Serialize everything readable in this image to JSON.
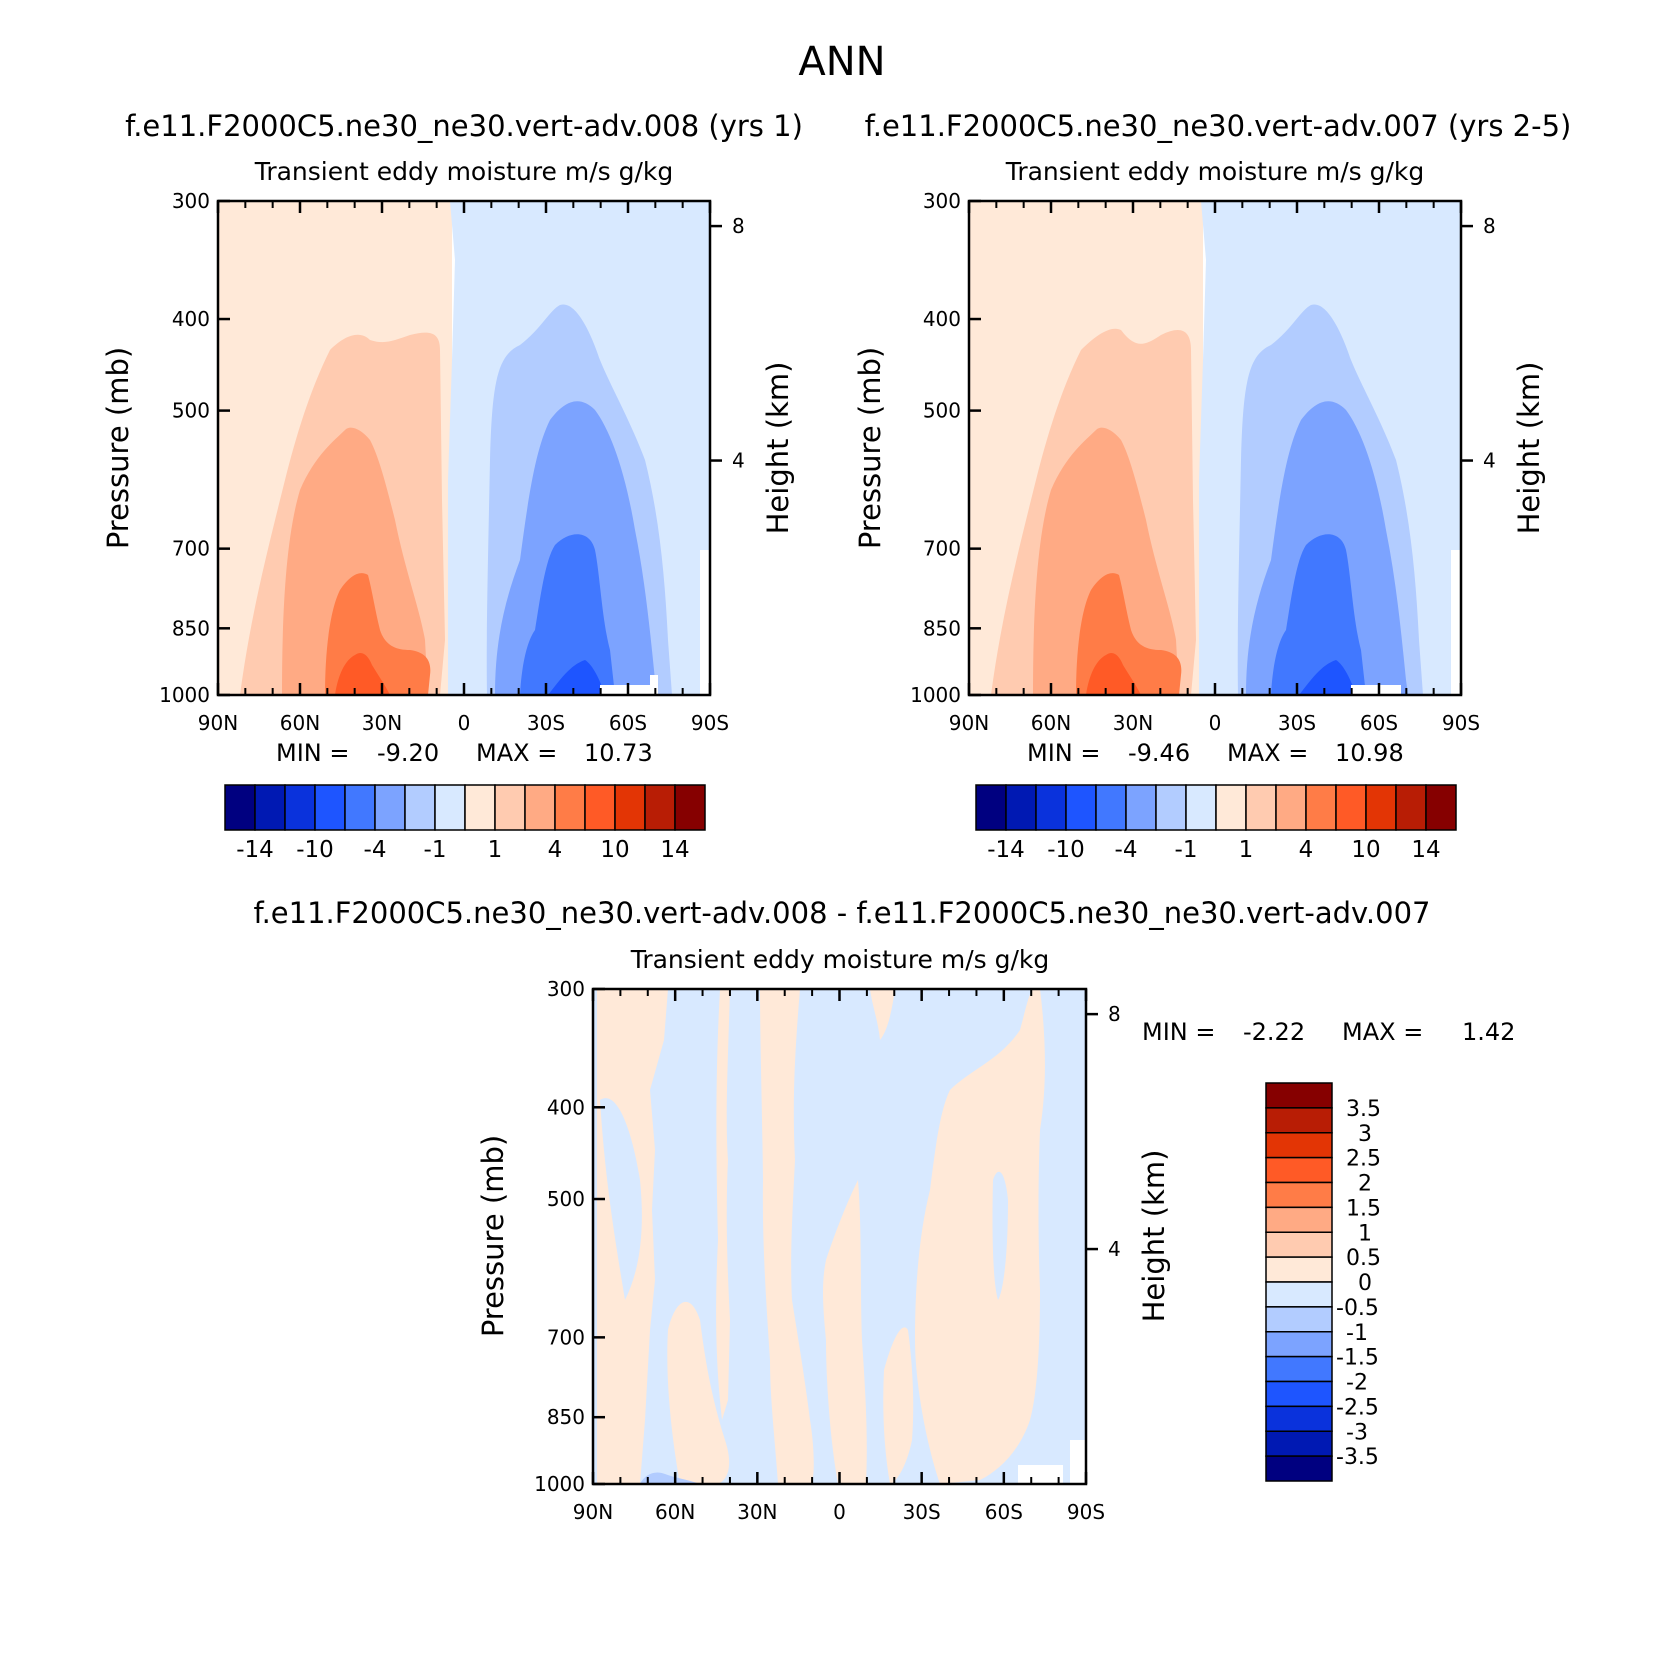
{
  "page": {
    "title": "ANN"
  },
  "colors": {
    "full_levels": [
      "#000080",
      "#0019b3",
      "#0a32dc",
      "#1e55ff",
      "#4178ff",
      "#7ca3ff",
      "#b2ccff",
      "#d8e9ff",
      "#ffe9d8",
      "#ffcbb0",
      "#ffaa84",
      "#ff7c47",
      "#ff5a26",
      "#e33505",
      "#b81d05",
      "#860000"
    ],
    "diff_levels": [
      "#000080",
      "#0019b3",
      "#0a32dc",
      "#1e55ff",
      "#4178ff",
      "#7ca3ff",
      "#b2ccff",
      "#d8e9ff",
      "#ffe9d8",
      "#ffcbb0",
      "#ffaa84",
      "#ff7c47",
      "#ff5a26",
      "#e33505",
      "#b81d05",
      "#860000"
    ]
  },
  "chart_data": [
    {
      "type": "heatmap",
      "panel": "top-left",
      "title": "f.e11.F2000C5.ne30_ne30.vert-adv.008 (yrs 1)",
      "subtitle": "Transient eddy moisture m/s g/kg",
      "ylabel": "Pressure (mb)",
      "y2label": "Height (km)",
      "x_ticks": [
        "90N",
        "60N",
        "30N",
        "0",
        "30S",
        "60S",
        "90S"
      ],
      "y_ticks": [
        "300",
        "400",
        "500",
        "700",
        "850",
        "1000"
      ],
      "y2_ticks": [
        "8",
        "4"
      ],
      "ylim": [
        1000,
        300
      ],
      "min_label": "MIN =",
      "min_value": "-9.20",
      "max_label": "MAX =",
      "max_value": "10.73",
      "colorbar_labels": [
        "-14",
        "-10",
        "-4",
        "-1",
        "1",
        "4",
        "10",
        "14"
      ]
    },
    {
      "type": "heatmap",
      "panel": "top-right",
      "title": "f.e11.F2000C5.ne30_ne30.vert-adv.007 (yrs 2-5)",
      "subtitle": "Transient eddy moisture m/s g/kg",
      "ylabel": "Pressure (mb)",
      "y2label": "Height (km)",
      "x_ticks": [
        "90N",
        "60N",
        "30N",
        "0",
        "30S",
        "60S",
        "90S"
      ],
      "y_ticks": [
        "300",
        "400",
        "500",
        "700",
        "850",
        "1000"
      ],
      "y2_ticks": [
        "8",
        "4"
      ],
      "ylim": [
        1000,
        300
      ],
      "min_label": "MIN =",
      "min_value": "-9.46",
      "max_label": "MAX =",
      "max_value": "10.98",
      "colorbar_labels": [
        "-14",
        "-10",
        "-4",
        "-1",
        "1",
        "4",
        "10",
        "14"
      ]
    },
    {
      "type": "heatmap",
      "panel": "bottom",
      "title": "f.e11.F2000C5.ne30_ne30.vert-adv.008 - f.e11.F2000C5.ne30_ne30.vert-adv.007",
      "subtitle": "Transient eddy moisture m/s g/kg",
      "ylabel": "Pressure (mb)",
      "y2label": "Height (km)",
      "x_ticks": [
        "90N",
        "60N",
        "30N",
        "0",
        "30S",
        "60S",
        "90S"
      ],
      "y_ticks": [
        "300",
        "400",
        "500",
        "700",
        "850",
        "1000"
      ],
      "y2_ticks": [
        "8",
        "4"
      ],
      "ylim": [
        1000,
        300
      ],
      "min_label": "MIN =",
      "min_value": "-2.22",
      "max_label": "MAX =",
      "max_value": "1.42",
      "colorbar_labels": [
        "3.5",
        "3",
        "2.5",
        "2",
        "1.5",
        "1",
        "0.5",
        "0",
        "-0.5",
        "-1",
        "-1.5",
        "-2",
        "-2.5",
        "-3",
        "-3.5"
      ]
    }
  ]
}
